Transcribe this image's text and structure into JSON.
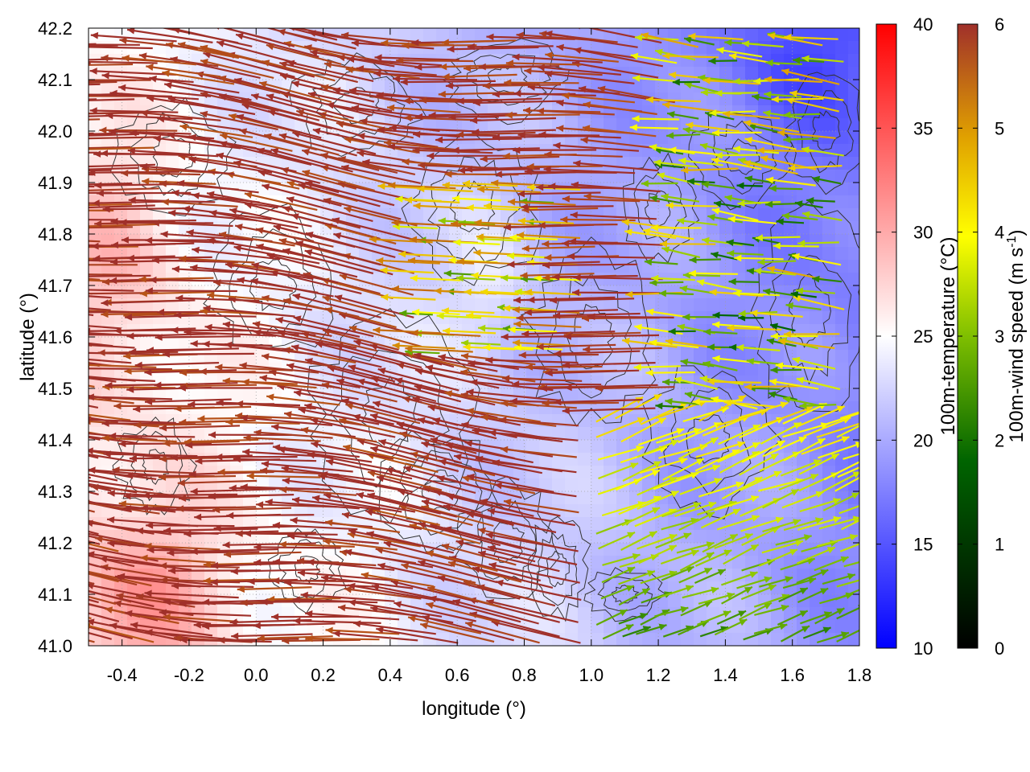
{
  "chart_data": {
    "type": "heatmap",
    "title": "",
    "xlabel": "longitude (°)",
    "ylabel": "latitude (°)",
    "xlim": [
      -0.5,
      1.8
    ],
    "ylim": [
      41.0,
      42.2
    ],
    "x_ticks": [
      -0.4,
      -0.2,
      0.0,
      0.2,
      0.4,
      0.6,
      0.8,
      1.0,
      1.2,
      1.4,
      1.6,
      1.8
    ],
    "x_tick_labels": [
      "-0.4",
      "-0.2",
      "0.0",
      "0.2",
      "0.4",
      "0.6",
      "0.8",
      "1.0",
      "1.2",
      "1.4",
      "1.6",
      "1.8"
    ],
    "y_ticks": [
      41.0,
      41.1,
      41.2,
      41.3,
      41.4,
      41.5,
      41.6,
      41.7,
      41.8,
      41.9,
      42.0,
      42.1,
      42.2
    ],
    "y_tick_labels": [
      "41.0",
      "41.1",
      "41.2",
      "41.3",
      "41.4",
      "41.5",
      "41.6",
      "41.7",
      "41.8",
      "41.9",
      "42.0",
      "42.1",
      "42.2"
    ],
    "grid": true,
    "background_field": {
      "name": "100m-temperature",
      "colorbar_label": "100m-temperature (°C)",
      "range": [
        10,
        40
      ],
      "ticks": [
        10,
        15,
        20,
        25,
        30,
        35,
        40
      ],
      "tick_labels": [
        "10",
        "15",
        "20",
        "25",
        "30",
        "35",
        "40"
      ],
      "colors": [
        "#0000ff",
        "#ffffff",
        "#ff0000"
      ]
    },
    "vector_field": {
      "name": "100m-wind speed",
      "colorbar_label_main": "100m-wind speed (m s",
      "colorbar_label_sup": "-1",
      "colorbar_label_end": ")",
      "range": [
        0,
        6
      ],
      "ticks": [
        0,
        1,
        2,
        3,
        4,
        5,
        6
      ],
      "tick_labels": [
        "0",
        "1",
        "2",
        "3",
        "4",
        "5",
        "6"
      ],
      "colors": [
        "#000000",
        "#006400",
        "#7fbf00",
        "#ffff00",
        "#e0a000",
        "#c06010",
        "#a0302a"
      ]
    },
    "contours": {
      "color": "#333333"
    }
  }
}
